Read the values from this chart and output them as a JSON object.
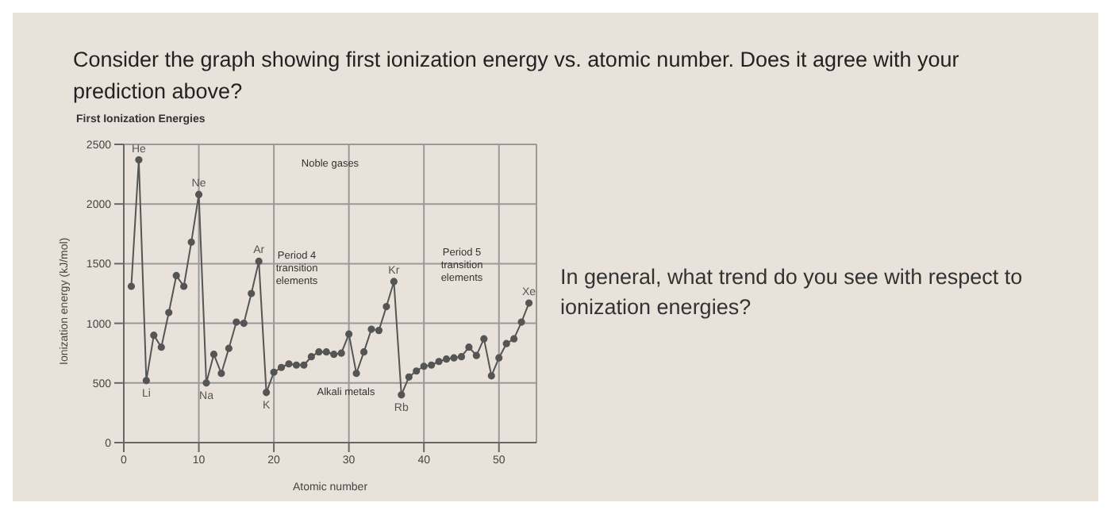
{
  "chart_data": {
    "type": "line",
    "title": "Consider the graph showing first ionization energy vs. atomic number. Does it agree with your prediction above?",
    "subtitle": "First Ionization Energies",
    "xlabel": "Atomic number",
    "ylabel": "Ionization energy (kJ/mol)",
    "x": [
      1,
      2,
      3,
      4,
      5,
      6,
      7,
      8,
      9,
      10,
      11,
      12,
      13,
      14,
      15,
      16,
      17,
      18,
      19,
      20,
      21,
      22,
      23,
      24,
      25,
      26,
      27,
      28,
      29,
      30,
      31,
      32,
      33,
      34,
      35,
      36,
      37,
      38,
      39,
      40,
      41,
      42,
      43,
      44,
      45,
      46,
      47,
      48,
      49,
      50,
      51,
      52,
      53,
      54
    ],
    "series": [
      {
        "color": "#555555",
        "values": [
          1310,
          2370,
          520,
          900,
          800,
          1090,
          1400,
          1310,
          1680,
          2080,
          500,
          740,
          580,
          790,
          1010,
          1000,
          1250,
          1520,
          420,
          590,
          630,
          660,
          650,
          650,
          720,
          760,
          760,
          740,
          750,
          910,
          580,
          760,
          950,
          940,
          1140,
          1350,
          400,
          550,
          600,
          640,
          650,
          680,
          700,
          710,
          720,
          800,
          730,
          870,
          560,
          710,
          830,
          870,
          1010,
          1170
        ]
      }
    ],
    "xlim": [
      0,
      55
    ],
    "xticks": [
      0,
      10,
      20,
      30,
      40,
      50
    ],
    "ylim": [
      0,
      2500
    ],
    "yticks": [
      0,
      500,
      1000,
      1500,
      2000,
      2500
    ],
    "grid": true,
    "marker": "circle",
    "line_style": "solid",
    "legend": false,
    "annotations": [
      {
        "text": "He",
        "x": 2,
        "y": 2370
      },
      {
        "text": "Ne",
        "x": 10,
        "y": 2080
      },
      {
        "text": "Ar",
        "x": 18,
        "y": 1520
      },
      {
        "text": "Kr",
        "x": 36,
        "y": 1350
      },
      {
        "text": "Xe",
        "x": 54,
        "y": 1170
      },
      {
        "text": "Li",
        "x": 3,
        "y": 520
      },
      {
        "text": "Na",
        "x": 11,
        "y": 500
      },
      {
        "text": "K",
        "x": 19,
        "y": 420
      },
      {
        "text": "Rb",
        "x": 37,
        "y": 400
      },
      "Noble gases",
      "Alkali metals",
      "Period 4 transition elements",
      "Period 5 transition elements",
      "In general, what trend do you see with respect to ionization energies?"
    ]
  }
}
